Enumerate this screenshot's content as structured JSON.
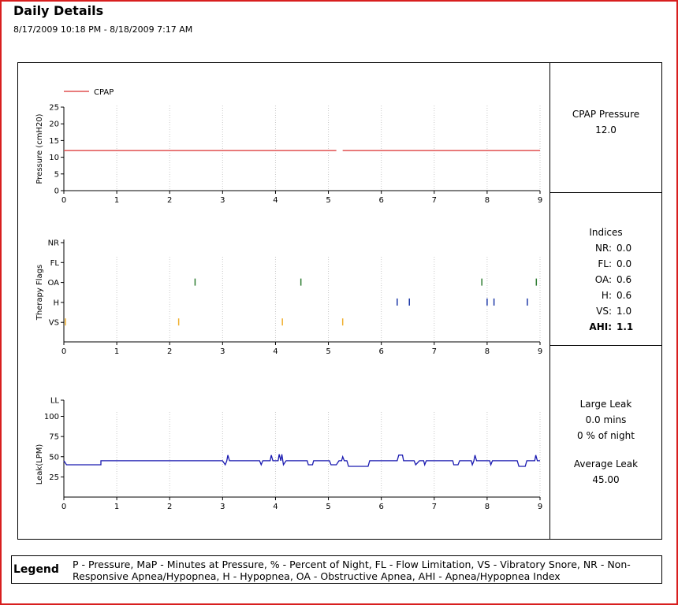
{
  "header": {
    "title": "Daily Details",
    "date_range": "8/17/2009 10:18 PM - 8/18/2009 7:17 AM"
  },
  "colors": {
    "frame": "#d81e1e",
    "cpap_line": "#e05050",
    "oa_flag": "#2e7d32",
    "h_flag": "#1f3aa8",
    "vs_flag": "#f0b030",
    "leak_line": "#1a1ab0"
  },
  "chart_data": [
    {
      "type": "line",
      "name": "pressure",
      "legend": [
        "CPAP"
      ],
      "ylabel": "Pressure (cmH20)",
      "xlabel": "",
      "yticks": [
        0,
        5,
        10,
        15,
        20,
        25
      ],
      "ylim": [
        0,
        25
      ],
      "xlim": [
        0,
        9
      ],
      "xticks": [
        0,
        1,
        2,
        3,
        4,
        5,
        6,
        7,
        8,
        9
      ],
      "grid": "vertical dotted",
      "series": [
        {
          "name": "CPAP",
          "segments": [
            [
              [
                0,
                12
              ],
              [
                5.15,
                12
              ]
            ],
            [
              [
                5.27,
                12
              ],
              [
                9,
                12
              ]
            ]
          ]
        }
      ]
    },
    {
      "type": "scatter",
      "name": "therapy_flags",
      "ylabel": "Therapy Flags",
      "categories": [
        "NR",
        "FL",
        "OA",
        "H",
        "VS"
      ],
      "xlim": [
        0,
        9
      ],
      "xticks": [
        0,
        1,
        2,
        3,
        4,
        5,
        6,
        7,
        8,
        9
      ],
      "events": {
        "OA": [
          2.48,
          4.48,
          7.9,
          8.93
        ],
        "H": [
          6.3,
          6.53,
          8.0,
          8.13,
          8.76
        ],
        "VS": [
          0.03,
          2.17,
          4.13,
          5.27
        ]
      }
    },
    {
      "type": "line",
      "name": "leak",
      "ylabel": "Leak(LPM)",
      "yticks": [
        "LL",
        "100",
        "75",
        "50",
        "25"
      ],
      "ylim": [
        0,
        120
      ],
      "xlim": [
        0,
        9
      ],
      "xticks": [
        0,
        1,
        2,
        3,
        4,
        5,
        6,
        7,
        8,
        9
      ],
      "series": [
        {
          "name": "Leak",
          "values": [
            [
              0,
              45
            ],
            [
              0.05,
              40
            ],
            [
              0.7,
              40
            ],
            [
              0.7,
              45
            ],
            [
              3.0,
              45
            ],
            [
              3.05,
              40
            ],
            [
              3.08,
              45
            ],
            [
              3.1,
              52
            ],
            [
              3.13,
              45
            ],
            [
              3.7,
              45
            ],
            [
              3.73,
              40
            ],
            [
              3.76,
              45
            ],
            [
              3.9,
              45
            ],
            [
              3.92,
              52
            ],
            [
              3.95,
              45
            ],
            [
              4.05,
              45
            ],
            [
              4.07,
              53
            ],
            [
              4.1,
              45
            ],
            [
              4.12,
              53
            ],
            [
              4.15,
              40
            ],
            [
              4.2,
              45
            ],
            [
              4.6,
              45
            ],
            [
              4.62,
              40
            ],
            [
              4.7,
              40
            ],
            [
              4.72,
              45
            ],
            [
              5.02,
              45
            ],
            [
              5.05,
              40
            ],
            [
              5.15,
              40
            ],
            [
              5.2,
              45
            ],
            [
              5.25,
              45
            ],
            [
              5.27,
              50
            ],
            [
              5.3,
              45
            ],
            [
              5.35,
              45
            ],
            [
              5.38,
              38
            ],
            [
              5.75,
              38
            ],
            [
              5.78,
              45
            ],
            [
              6.3,
              45
            ],
            [
              6.33,
              52
            ],
            [
              6.4,
              52
            ],
            [
              6.42,
              45
            ],
            [
              6.62,
              45
            ],
            [
              6.65,
              40
            ],
            [
              6.72,
              45
            ],
            [
              6.8,
              45
            ],
            [
              6.82,
              40
            ],
            [
              6.85,
              45
            ],
            [
              7.35,
              45
            ],
            [
              7.37,
              40
            ],
            [
              7.45,
              40
            ],
            [
              7.48,
              45
            ],
            [
              7.7,
              45
            ],
            [
              7.72,
              40
            ],
            [
              7.75,
              45
            ],
            [
              7.77,
              52
            ],
            [
              7.8,
              45
            ],
            [
              8.05,
              45
            ],
            [
              8.07,
              40
            ],
            [
              8.1,
              45
            ],
            [
              8.57,
              45
            ],
            [
              8.6,
              38
            ],
            [
              8.72,
              38
            ],
            [
              8.75,
              45
            ],
            [
              8.9,
              45
            ],
            [
              8.92,
              52
            ],
            [
              8.95,
              45
            ],
            [
              9,
              45
            ]
          ]
        }
      ]
    }
  ],
  "panels": {
    "pressure": {
      "label": "CPAP Pressure",
      "value": "12.0"
    },
    "indices": {
      "title": "Indices",
      "rows": [
        {
          "label": "NR:",
          "value": "0.0"
        },
        {
          "label": "FL:",
          "value": "0.0"
        },
        {
          "label": "OA:",
          "value": "0.6"
        },
        {
          "label": "H:",
          "value": "0.6"
        },
        {
          "label": "VS:",
          "value": "1.0"
        },
        {
          "label": "AHI:",
          "value": "1.1"
        }
      ]
    },
    "leak": {
      "title": "Large Leak",
      "duration": "0.0 mins",
      "percent": "0 % of night",
      "avg_label": "Average Leak",
      "avg_value": "45.00"
    }
  },
  "legend": {
    "title": "Legend",
    "text": "P - Pressure, MaP - Minutes at Pressure, % - Percent of Night, FL - Flow Limitation, VS - Vibratory Snore, NR - Non-Responsive Apnea/Hypopnea, H - Hypopnea, OA - Obstructive Apnea, AHI - Apnea/Hypopnea Index"
  }
}
